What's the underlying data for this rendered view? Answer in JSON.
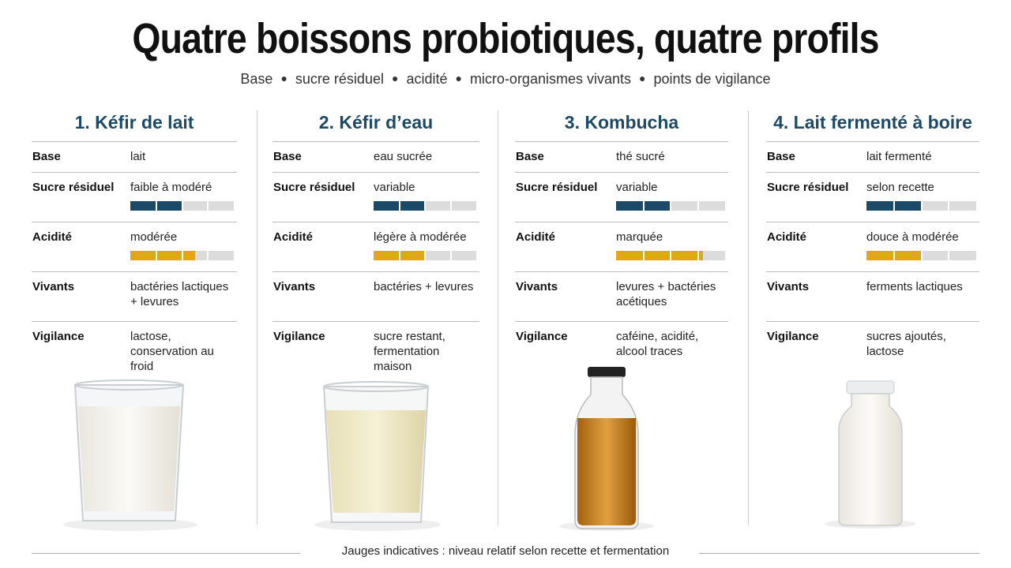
{
  "header": {
    "title": "Quatre boissons probiotiques, quatre profils",
    "subtitle": [
      "Base",
      "sucre résiduel",
      "acidité",
      "micro-organismes vivants",
      "points de vigilance"
    ]
  },
  "gauge_segments": 4,
  "columns": [
    {
      "title": "1. Kéfir de lait",
      "rows": [
        {
          "label": "Base",
          "text": "lait"
        },
        {
          "label": "Sucre résiduel",
          "text": "faible à modéré",
          "gauge": 2,
          "color": "#1c4966"
        },
        {
          "label": "Acidité",
          "text": "modérée",
          "gauge": 2.5,
          "color": "#e2a619"
        },
        {
          "label": "Vivants",
          "text": "bactéries lactiques + levures"
        },
        {
          "label": "Vigilance",
          "text": "lactose, conservation au froid"
        }
      ]
    },
    {
      "title": "2. Kéfir d’eau",
      "rows": [
        {
          "label": "Base",
          "text": "eau sucrée"
        },
        {
          "label": "Sucre résiduel",
          "text": "variable",
          "gauge": 2,
          "color": "#1c4966"
        },
        {
          "label": "Acidité",
          "text": "légère à modérée",
          "gauge": 2,
          "color": "#e2a619"
        },
        {
          "label": "Vivants",
          "text": "bactéries + levures"
        },
        {
          "label": "Vigilance",
          "text": "sucre restant, fermentation maison"
        }
      ]
    },
    {
      "title": "3. Kombucha",
      "rows": [
        {
          "label": "Base",
          "text": "thé sucré"
        },
        {
          "label": "Sucre résiduel",
          "text": "variable",
          "gauge": 2,
          "color": "#1c4966"
        },
        {
          "label": "Acidité",
          "text": "marquée",
          "gauge": 3.2,
          "color": "#e2a619"
        },
        {
          "label": "Vivants",
          "text": "levures + bactéries acétiques"
        },
        {
          "label": "Vigilance",
          "text": "caféine, acidité, alcool traces"
        }
      ]
    },
    {
      "title": "4. Lait fermenté à boire",
      "rows": [
        {
          "label": "Base",
          "text": "lait fermenté"
        },
        {
          "label": "Sucre résiduel",
          "text": "selon recette",
          "gauge": 2,
          "color": "#1c4966"
        },
        {
          "label": "Acidité",
          "text": "douce à modérée",
          "gauge": 2,
          "color": "#e2a619"
        },
        {
          "label": "Vivants",
          "text": "ferments lactiques"
        },
        {
          "label": "Vigilance",
          "text": "sucres ajoutés, lactose"
        }
      ]
    }
  ],
  "footer": {
    "note": "Jauges indicatives : niveau relatif selon recette et fermentation"
  }
}
